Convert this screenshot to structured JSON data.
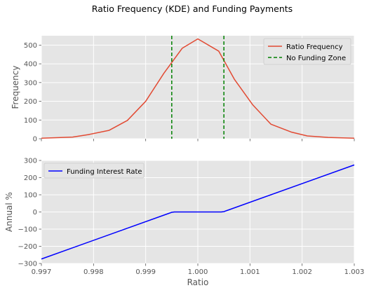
{
  "figure": {
    "title": "Ratio Frequency (KDE) and Funding Payments"
  },
  "colors": {
    "axes_bg": "#e5e5e5",
    "grid": "#ffffff",
    "tick_text": "#555555",
    "label_text": "#555555",
    "kde_line": "#e24a33",
    "zone_line": "#008000",
    "funding_line": "#0000ff"
  },
  "chart_data": [
    {
      "type": "line",
      "ylabel": "Frequency",
      "xlim": [
        0.997,
        1.003
      ],
      "ylim": [
        0,
        550
      ],
      "grid": true,
      "legend_position": "top-right",
      "xticks": [
        0.997,
        0.998,
        0.999,
        1.0,
        1.001,
        1.002,
        1.003
      ],
      "xtick_labels_visible": false,
      "yticks": [
        0,
        100,
        200,
        300,
        400,
        500
      ],
      "ytick_labels": [
        "0",
        "100",
        "200",
        "300",
        "400",
        "500"
      ],
      "series": [
        {
          "name": "Ratio Frequency",
          "color": "#e24a33",
          "style": "solid",
          "x": [
            0.997,
            0.9976,
            0.9979,
            0.9983,
            0.99865,
            0.999,
            0.99935,
            0.9997,
            1.0,
            1.0004,
            1.0007,
            1.00105,
            1.0014,
            1.0018,
            1.0021,
            1.0025,
            1.003
          ],
          "y": [
            3,
            9,
            22,
            45,
            98,
            200,
            350,
            483,
            533,
            468,
            318,
            182,
            78,
            35,
            15,
            7,
            3
          ]
        }
      ],
      "vlines": [
        {
          "name": "No Funding Zone",
          "x": 0.9995,
          "color": "#008000",
          "style": "dashed"
        },
        {
          "x": 1.0005,
          "color": "#008000",
          "style": "dashed"
        }
      ]
    },
    {
      "type": "line",
      "xlabel": "Ratio",
      "ylabel": "Annual %",
      "xlim": [
        0.997,
        1.003
      ],
      "ylim": [
        -300,
        300
      ],
      "grid": true,
      "legend_position": "top-left",
      "xticks": [
        0.997,
        0.998,
        0.999,
        1.0,
        1.001,
        1.002,
        1.003
      ],
      "xtick_labels": [
        "0.997",
        "0.998",
        "0.999",
        "1.000",
        "1.001",
        "1.002",
        "1.003"
      ],
      "yticks": [
        -300,
        -200,
        -100,
        0,
        100,
        200,
        300
      ],
      "ytick_labels": [
        "−300",
        "−200",
        "−100",
        "0",
        "100",
        "200",
        "300"
      ],
      "series": [
        {
          "name": "Funding Interest Rate",
          "color": "#0000ff",
          "style": "solid",
          "x": [
            0.997,
            0.9995,
            0.99955,
            1.00045,
            1.0005,
            1.003
          ],
          "y": [
            -274,
            -2,
            0,
            0,
            2,
            274
          ]
        }
      ]
    }
  ]
}
